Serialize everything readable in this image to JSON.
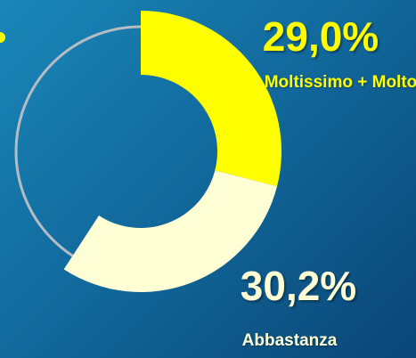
{
  "chart_data": {
    "type": "donut",
    "categories": [
      "Moltissimo + Molto",
      "Abbastanza"
    ],
    "values": [
      29.0,
      30.2
    ],
    "value_labels": [
      "29,0%",
      "30,2%"
    ],
    "colors": [
      "#ffff00",
      "#ffffd6"
    ],
    "total": 100
  }
}
